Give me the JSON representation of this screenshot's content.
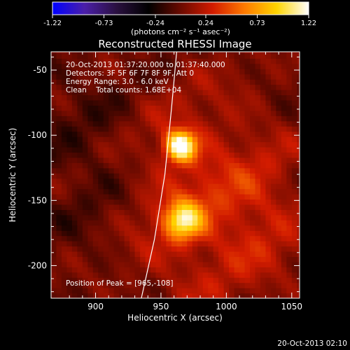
{
  "chart_data": {
    "type": "heatmap",
    "title": "Reconstructed RHESSI Image",
    "xlabel": "Heliocentric X (arcsec)",
    "ylabel": "Heliocentric Y (arcsec)",
    "xlim": [
      866,
      1056
    ],
    "ylim": [
      -225,
      -36
    ],
    "x_ticks": [
      900,
      950,
      1000,
      1050
    ],
    "y_ticks": [
      -50,
      -100,
      -150,
      -200
    ],
    "colorbar": {
      "min": -1.22,
      "max": 1.22,
      "ticks": [
        "-1.22",
        "-0.73",
        "-0.24",
        "0.24",
        "0.73",
        "1.22"
      ],
      "units_label": "(photons cm⁻² s⁻¹ asec⁻²)",
      "colormap": [
        "#0000ff",
        "#4b1fa8",
        "#2a1040",
        "#000000",
        "#6a0a00",
        "#d21b00",
        "#ff7a00",
        "#ffd400",
        "#ffffff"
      ]
    },
    "info_lines": [
      "20-Oct-2013 01:37:20.000 to 01:37:40.000",
      "Detectors: 3F 5F 6F 7F 8F 9F, Att 0",
      "Energy Range: 3.0 - 6.0 keV",
      "Clean    Total counts: 1.68E+04"
    ],
    "peak_label": "Position of Peak = [965,-108]",
    "peak": {
      "x": 965,
      "y": -108
    },
    "sources": [
      {
        "x": 965,
        "y": -108,
        "amplitude": 1.22,
        "sigma": 8
      },
      {
        "x": 967,
        "y": -165,
        "amplitude": 0.85,
        "sigma": 10
      }
    ],
    "limb_curve": [
      [
        935,
        -225
      ],
      [
        945,
        -180
      ],
      [
        953,
        -130
      ],
      [
        958,
        -80
      ],
      [
        962,
        -36
      ]
    ],
    "footer_timestamp": "20-Oct-2013 02:10"
  }
}
